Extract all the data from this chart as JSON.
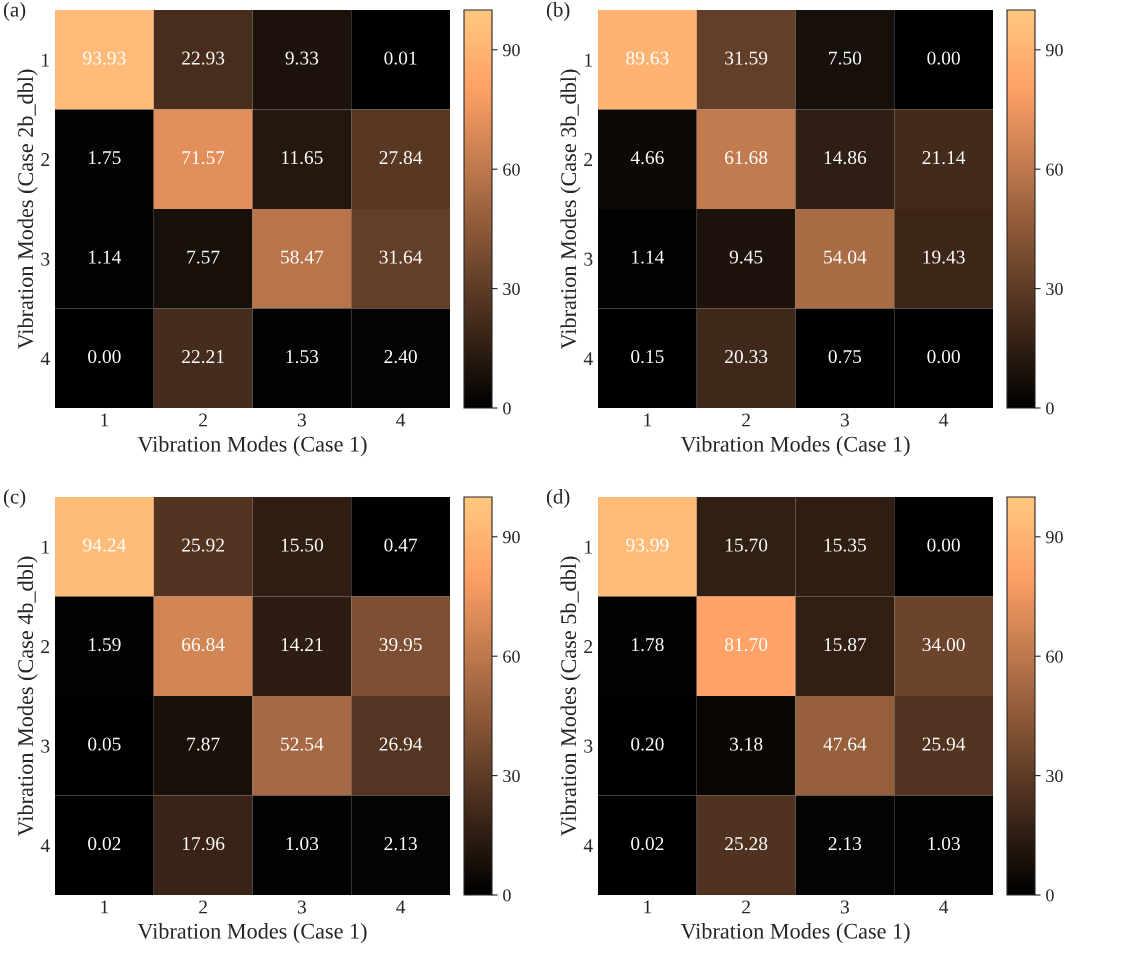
{
  "chart_data": [
    {
      "type": "heatmap",
      "title": "(a)",
      "xlabel": "Vibration Modes (Case 1)",
      "ylabel": "Vibration Modes (Case 2b_dbl)",
      "categories": [
        "1",
        "2",
        "3",
        "4"
      ],
      "y_categories": [
        "1",
        "2",
        "3",
        "4"
      ],
      "cells": [
        [
          93.93,
          22.93,
          9.33,
          0.01
        ],
        [
          1.75,
          71.57,
          11.65,
          27.84
        ],
        [
          1.14,
          7.57,
          58.47,
          31.64
        ],
        [
          0.0,
          22.21,
          1.53,
          2.4
        ]
      ],
      "cell_labels": [
        [
          "93.93",
          "22.93",
          "9.33",
          "0.01"
        ],
        [
          "1.75",
          "71.57",
          "11.65",
          "27.84"
        ],
        [
          "1.14",
          "7.57",
          "58.47",
          "31.64"
        ],
        [
          "0.00",
          "22.21",
          "1.53",
          "2.40"
        ]
      ],
      "clim": [
        0,
        100
      ],
      "cticks": [
        0,
        30,
        60,
        90
      ]
    },
    {
      "type": "heatmap",
      "title": "(b)",
      "xlabel": "Vibration Modes (Case 1)",
      "ylabel": "Vibration Modes (Case 3b_dbl)",
      "categories": [
        "1",
        "2",
        "3",
        "4"
      ],
      "y_categories": [
        "1",
        "2",
        "3",
        "4"
      ],
      "cells": [
        [
          89.63,
          31.59,
          7.5,
          0.0
        ],
        [
          4.66,
          61.68,
          14.86,
          21.14
        ],
        [
          1.14,
          9.45,
          54.04,
          19.43
        ],
        [
          0.15,
          20.33,
          0.75,
          0.0
        ]
      ],
      "cell_labels": [
        [
          "89.63",
          "31.59",
          "7.50",
          "0.00"
        ],
        [
          "4.66",
          "61.68",
          "14.86",
          "21.14"
        ],
        [
          "1.14",
          "9.45",
          "54.04",
          "19.43"
        ],
        [
          "0.15",
          "20.33",
          "0.75",
          "0.00"
        ]
      ],
      "clim": [
        0,
        100
      ],
      "cticks": [
        0,
        30,
        60,
        90
      ]
    },
    {
      "type": "heatmap",
      "title": "(c)",
      "xlabel": "Vibration Modes (Case 1)",
      "ylabel": "Vibration Modes (Case 4b_dbl)",
      "categories": [
        "1",
        "2",
        "3",
        "4"
      ],
      "y_categories": [
        "1",
        "2",
        "3",
        "4"
      ],
      "cells": [
        [
          94.24,
          25.92,
          15.5,
          0.47
        ],
        [
          1.59,
          66.84,
          14.21,
          39.95
        ],
        [
          0.05,
          7.87,
          52.54,
          26.94
        ],
        [
          0.02,
          17.96,
          1.03,
          2.13
        ]
      ],
      "cell_labels": [
        [
          "94.24",
          "25.92",
          "15.50",
          "0.47"
        ],
        [
          "1.59",
          "66.84",
          "14.21",
          "39.95"
        ],
        [
          "0.05",
          "7.87",
          "52.54",
          "26.94"
        ],
        [
          "0.02",
          "17.96",
          "1.03",
          "2.13"
        ]
      ],
      "clim": [
        0,
        100
      ],
      "cticks": [
        0,
        30,
        60,
        90
      ]
    },
    {
      "type": "heatmap",
      "title": "(d)",
      "xlabel": "Vibration Modes (Case 1)",
      "ylabel": "Vibration Modes (Case 5b_dbl)",
      "categories": [
        "1",
        "2",
        "3",
        "4"
      ],
      "y_categories": [
        "1",
        "2",
        "3",
        "4"
      ],
      "cells": [
        [
          93.99,
          15.7,
          15.35,
          0.0
        ],
        [
          1.78,
          81.7,
          15.87,
          34.0
        ],
        [
          0.2,
          3.18,
          47.64,
          25.94
        ],
        [
          0.02,
          25.28,
          2.13,
          1.03
        ]
      ],
      "cell_labels": [
        [
          "93.99",
          "15.70",
          "15.35",
          "0.00"
        ],
        [
          "1.78",
          "81.70",
          "15.87",
          "34.00"
        ],
        [
          "0.20",
          "3.18",
          "47.64",
          "25.94"
        ],
        [
          "0.02",
          "25.28",
          "2.13",
          "1.03"
        ]
      ],
      "clim": [
        0,
        100
      ],
      "cticks": [
        0,
        30,
        60,
        90
      ]
    }
  ]
}
